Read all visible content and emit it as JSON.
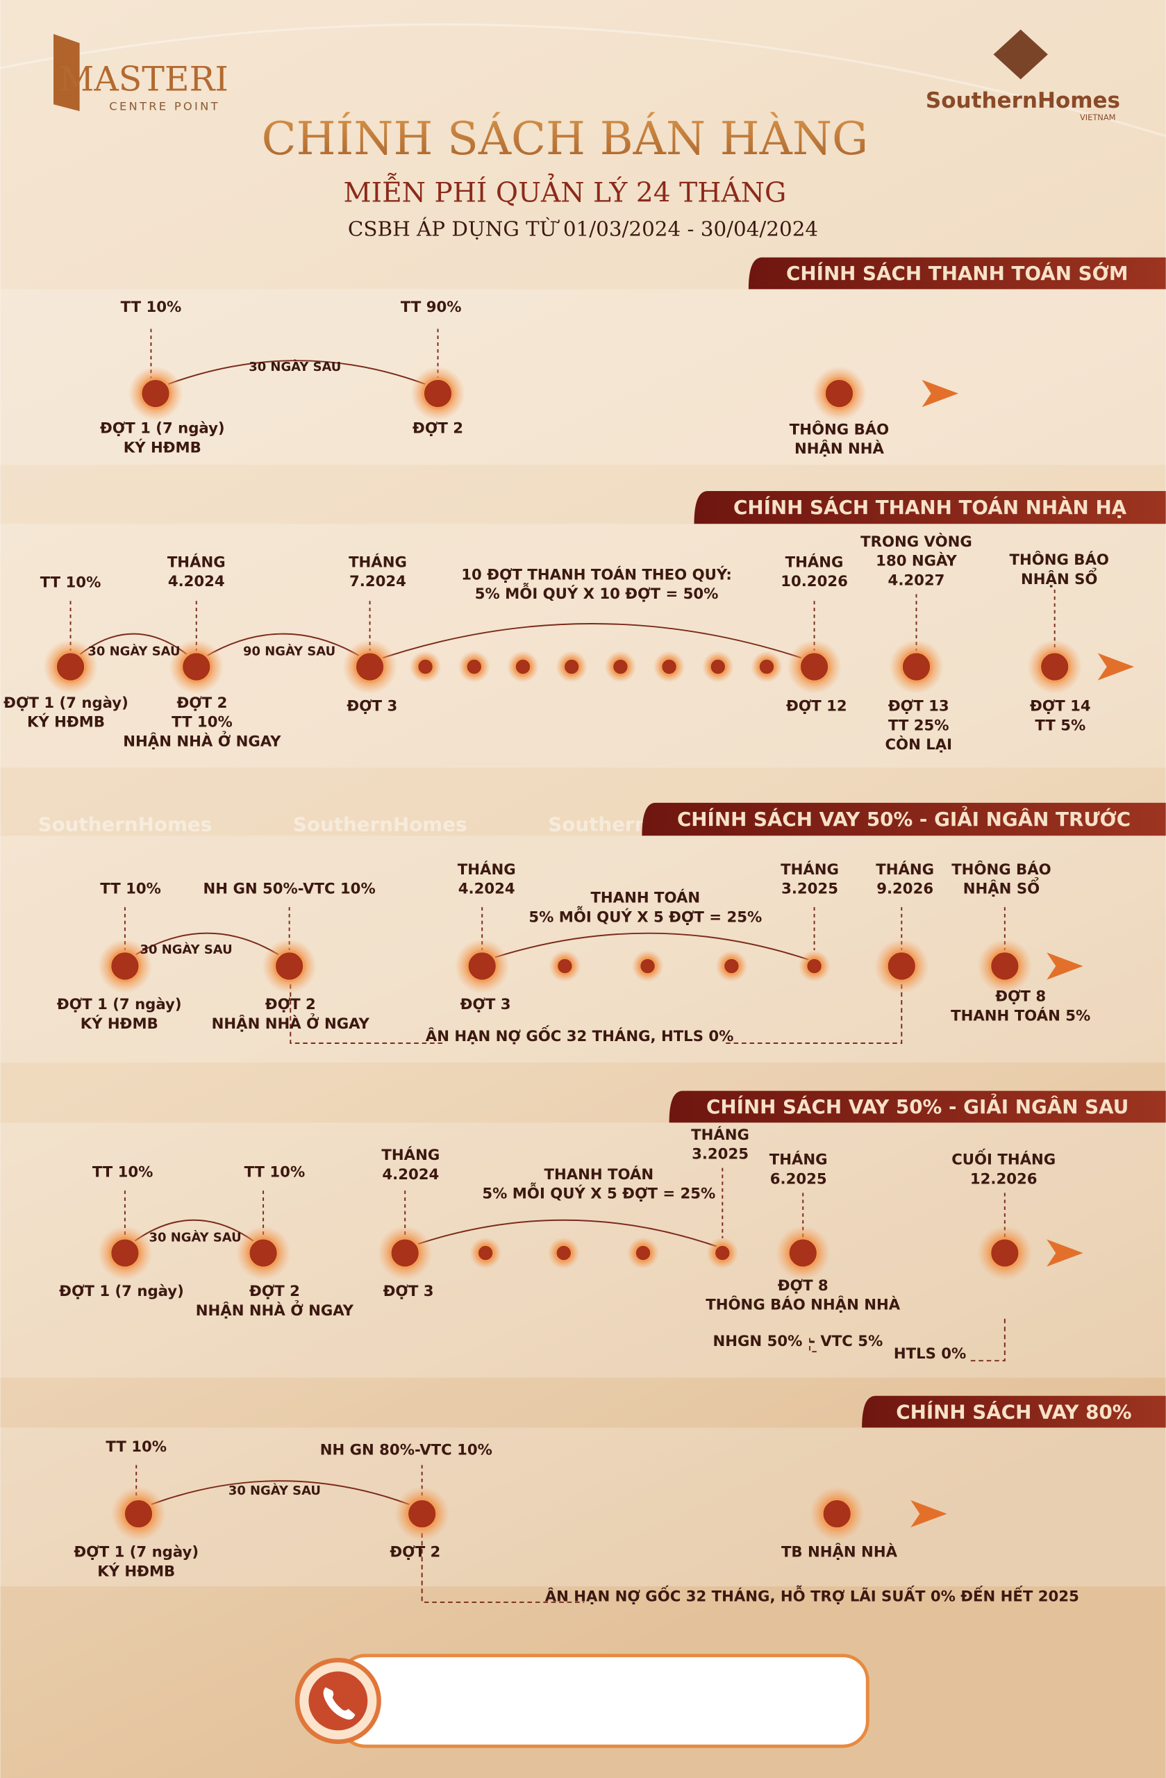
{
  "header": {
    "brand": "MASTERI",
    "brand_sub": "CENTRE POINT",
    "partner": "SouthernHomes",
    "partner_sub": "VIETNAM",
    "title": "CHÍNH SÁCH BÁN HÀNG",
    "subtitle": "MIỄN PHÍ QUẢN LÝ 24 THÁNG",
    "period": "CSBH ÁP DỤNG TỪ 01/03/2024 - 30/04/2024"
  },
  "watermark": "SouthernHomes",
  "sections": [
    {
      "title": "CHÍNH SÁCH THANH TOÁN SỚM",
      "above": [
        [
          "TT 10%"
        ],
        [
          "TT 90%"
        ]
      ],
      "spans": [
        "30 NGÀY SAU"
      ],
      "below": [
        [
          "ĐỢT 1 (7 ngày)",
          "KÝ HĐMB"
        ],
        [
          "ĐỢT 2"
        ],
        [
          "THÔNG BÁO",
          "NHẬN NHÀ"
        ]
      ],
      "notes": []
    },
    {
      "title": "CHÍNH SÁCH THANH TOÁN NHÀN HẠ",
      "above": [
        [
          "TT 10%"
        ],
        [
          "THÁNG",
          "4.2024"
        ],
        [
          "THÁNG",
          "7.2024"
        ],
        [
          "10 ĐỢT THANH TOÁN THEO QUÝ:",
          "5% MỖI QUÝ X 10 ĐỢT = 50%"
        ],
        [
          "THÁNG",
          "10.2026"
        ],
        [
          "TRONG VÒNG",
          "180 NGÀY",
          "4.2027"
        ],
        [
          "THÔNG BÁO",
          "NHẬN SỔ"
        ]
      ],
      "spans": [
        "30 NGÀY SAU",
        "90 NGÀY SAU"
      ],
      "below": [
        [
          "ĐỢT 1 (7 ngày)",
          "KÝ HĐMB"
        ],
        [
          "ĐỢT 2",
          "TT 10%",
          "NHẬN NHÀ Ở NGAY"
        ],
        [
          "ĐỢT 3"
        ],
        [
          "ĐỢT 12"
        ],
        [
          "ĐỢT 13",
          "TT 25%",
          "CÒN LẠI"
        ],
        [
          "ĐỢT 14",
          "TT 5%"
        ]
      ],
      "notes": []
    },
    {
      "title": "CHÍNH SÁCH VAY 50% - GIẢI NGÂN TRƯỚC",
      "above": [
        [
          "TT 10%"
        ],
        [
          "NH GN 50%-VTC 10%"
        ],
        [
          "THÁNG",
          "4.2024"
        ],
        [
          "THANH TOÁN",
          "5% MỖI QUÝ X 5 ĐỢT = 25%"
        ],
        [
          "THÁNG",
          "3.2025"
        ],
        [
          "THÁNG",
          "9.2026"
        ],
        [
          "THÔNG BÁO",
          "NHẬN SỔ"
        ]
      ],
      "spans": [
        "30 NGÀY SAU"
      ],
      "below": [
        [
          "ĐỢT 1 (7 ngày)",
          "KÝ HĐMB"
        ],
        [
          "ĐỢT 2",
          "NHẬN NHÀ Ở NGAY"
        ],
        [
          "ĐỢT 3"
        ],
        [
          "ĐỢT 8",
          "THANH TOÁN 5%"
        ]
      ],
      "notes": [
        "ÂN HẠN NỢ GỐC 32 THÁNG, HTLS 0%"
      ]
    },
    {
      "title": "CHÍNH SÁCH VAY 50% - GIẢI NGÂN SAU",
      "above": [
        [
          "TT 10%"
        ],
        [
          "TT 10%"
        ],
        [
          "THÁNG",
          "4.2024"
        ],
        [
          "THANH TOÁN",
          "5% MỖI QUÝ X 5 ĐỢT = 25%"
        ],
        [
          "THÁNG",
          "3.2025"
        ],
        [
          "THÁNG",
          "6.2025"
        ],
        [
          "CUỐI THÁNG",
          "12.2026"
        ]
      ],
      "spans": [
        "30 NGÀY SAU"
      ],
      "below": [
        [
          "ĐỢT 1 (7 ngày)"
        ],
        [
          "ĐỢT 2",
          "NHẬN NHÀ Ở NGAY"
        ],
        [
          "ĐỢT 3"
        ],
        [
          "ĐỢT 8",
          "THÔNG BÁO NHẬN NHÀ"
        ]
      ],
      "notes": [
        "NHGN 50%",
        "- VTC 5%",
        "HTLS 0%"
      ]
    },
    {
      "title": "CHÍNH SÁCH VAY 80%",
      "above": [
        [
          "TT 10%"
        ],
        [
          "NH GN 80%-VTC 10%"
        ]
      ],
      "spans": [
        "30 NGÀY SAU"
      ],
      "below": [
        [
          "ĐỢT 1 (7 ngày)",
          "KÝ HĐMB"
        ],
        [
          "ĐỢT 2"
        ],
        [
          "TB NHẬN NHÀ"
        ]
      ],
      "notes": [
        "ÂN HẠN NỢ GỐC 32 THÁNG, HỖ TRỢ LÃI SUẤT 0% ĐẾN HẾT 2025"
      ]
    }
  ]
}
